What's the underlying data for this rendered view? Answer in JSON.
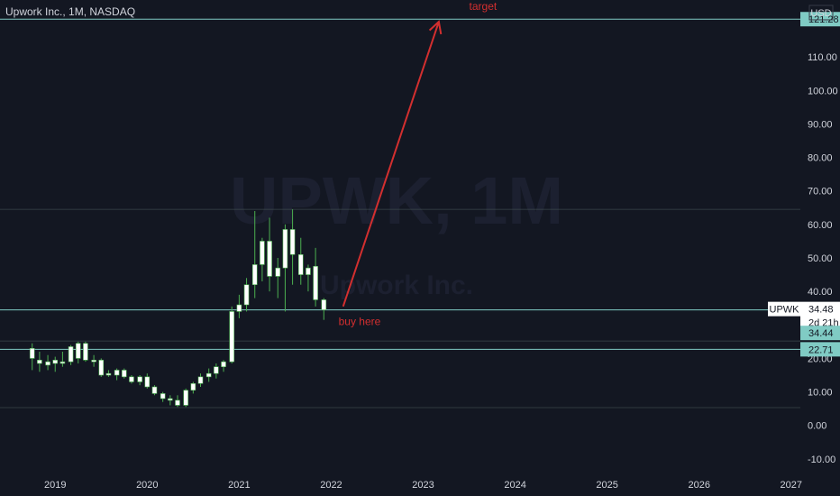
{
  "header": {
    "title": "Upwork Inc., 1M, NASDAQ"
  },
  "watermark": {
    "symbol": "UPWK, 1M",
    "name": "Upwork Inc."
  },
  "currency": "USD",
  "colors": {
    "background": "#131722",
    "up": "#ffffff",
    "wick": "#4caf50",
    "down": "#ffffff",
    "hline": "#80cbc4",
    "annotation": "#d32f2f",
    "tag_bg": "#80cbc4"
  },
  "chart_data": {
    "type": "candlestick",
    "x_ticks": [
      "2019",
      "2020",
      "2021",
      "2022",
      "2023",
      "2024",
      "2025",
      "2026",
      "2027"
    ],
    "y_ticks": [
      "-10.00",
      "0.00",
      "10.00",
      "20.00",
      "30.00",
      "40.00",
      "50.00",
      "60.00",
      "70.00",
      "80.00",
      "90.00",
      "100.00",
      "110.00"
    ],
    "ylim": [
      -13,
      127
    ],
    "xlim": [
      2018.4,
      2027.1
    ],
    "candles": [
      {
        "t": 2018.75,
        "o": 20.0,
        "h": 24.5,
        "l": 16.5,
        "c": 23.0
      },
      {
        "t": 2018.83,
        "o": 19.5,
        "h": 22.0,
        "l": 16.0,
        "c": 18.5
      },
      {
        "t": 2018.92,
        "o": 18.0,
        "h": 21.0,
        "l": 16.5,
        "c": 19.0
      },
      {
        "t": 2019.0,
        "o": 18.5,
        "h": 20.5,
        "l": 16.0,
        "c": 19.5
      },
      {
        "t": 2019.08,
        "o": 19.0,
        "h": 22.0,
        "l": 17.5,
        "c": 18.5
      },
      {
        "t": 2019.17,
        "o": 19.0,
        "h": 24.0,
        "l": 18.0,
        "c": 23.5
      },
      {
        "t": 2019.25,
        "o": 20.0,
        "h": 25.0,
        "l": 18.5,
        "c": 24.5
      },
      {
        "t": 2019.33,
        "o": 24.5,
        "h": 25.0,
        "l": 19.0,
        "c": 19.5
      },
      {
        "t": 2019.42,
        "o": 19.5,
        "h": 21.0,
        "l": 17.5,
        "c": 19.0
      },
      {
        "t": 2019.5,
        "o": 19.5,
        "h": 20.0,
        "l": 14.5,
        "c": 15.0
      },
      {
        "t": 2019.58,
        "o": 15.5,
        "h": 16.5,
        "l": 14.5,
        "c": 15.0
      },
      {
        "t": 2019.67,
        "o": 15.0,
        "h": 17.0,
        "l": 13.5,
        "c": 16.5
      },
      {
        "t": 2019.75,
        "o": 16.5,
        "h": 17.0,
        "l": 14.0,
        "c": 14.5
      },
      {
        "t": 2019.83,
        "o": 14.5,
        "h": 15.0,
        "l": 12.5,
        "c": 13.0
      },
      {
        "t": 2019.92,
        "o": 13.0,
        "h": 15.0,
        "l": 12.0,
        "c": 14.5
      },
      {
        "t": 2020.0,
        "o": 14.5,
        "h": 15.5,
        "l": 11.0,
        "c": 11.5
      },
      {
        "t": 2020.08,
        "o": 11.5,
        "h": 12.0,
        "l": 9.0,
        "c": 9.5
      },
      {
        "t": 2020.17,
        "o": 9.5,
        "h": 10.0,
        "l": 7.0,
        "c": 8.0
      },
      {
        "t": 2020.25,
        "o": 8.0,
        "h": 9.0,
        "l": 6.0,
        "c": 7.5
      },
      {
        "t": 2020.33,
        "o": 7.5,
        "h": 9.0,
        "l": 5.5,
        "c": 6.0
      },
      {
        "t": 2020.42,
        "o": 6.0,
        "h": 11.0,
        "l": 5.5,
        "c": 10.5
      },
      {
        "t": 2020.5,
        "o": 10.5,
        "h": 13.0,
        "l": 9.5,
        "c": 12.5
      },
      {
        "t": 2020.58,
        "o": 12.5,
        "h": 15.5,
        "l": 11.5,
        "c": 14.5
      },
      {
        "t": 2020.67,
        "o": 14.5,
        "h": 17.0,
        "l": 13.0,
        "c": 15.5
      },
      {
        "t": 2020.75,
        "o": 15.5,
        "h": 18.5,
        "l": 14.0,
        "c": 17.5
      },
      {
        "t": 2020.83,
        "o": 17.5,
        "h": 19.5,
        "l": 16.0,
        "c": 19.0
      },
      {
        "t": 2020.92,
        "o": 19.0,
        "h": 35.5,
        "l": 18.5,
        "c": 34.0
      },
      {
        "t": 2021.0,
        "o": 34.0,
        "h": 39.0,
        "l": 32.0,
        "c": 36.0
      },
      {
        "t": 2021.08,
        "o": 36.0,
        "h": 44.0,
        "l": 34.0,
        "c": 42.0
      },
      {
        "t": 2021.17,
        "o": 42.0,
        "h": 64.0,
        "l": 38.0,
        "c": 48.0
      },
      {
        "t": 2021.25,
        "o": 48.0,
        "h": 56.0,
        "l": 43.0,
        "c": 55.0
      },
      {
        "t": 2021.33,
        "o": 55.0,
        "h": 62.0,
        "l": 40.0,
        "c": 44.5
      },
      {
        "t": 2021.42,
        "o": 44.5,
        "h": 50.0,
        "l": 38.0,
        "c": 47.0
      },
      {
        "t": 2021.5,
        "o": 47.0,
        "h": 60.0,
        "l": 34.0,
        "c": 58.5
      },
      {
        "t": 2021.58,
        "o": 58.5,
        "h": 64.5,
        "l": 42.0,
        "c": 51.0
      },
      {
        "t": 2021.67,
        "o": 51.0,
        "h": 56.0,
        "l": 42.0,
        "c": 45.0
      },
      {
        "t": 2021.75,
        "o": 45.0,
        "h": 48.0,
        "l": 40.0,
        "c": 47.0
      },
      {
        "t": 2021.83,
        "o": 47.5,
        "h": 53.0,
        "l": 35.5,
        "c": 37.5
      },
      {
        "t": 2021.92,
        "o": 37.5,
        "h": 38.0,
        "l": 31.5,
        "c": 34.5
      }
    ],
    "horizontal_lines": [
      121.28,
      64.5,
      34.48,
      25.2,
      22.71,
      5.3
    ],
    "annotations": [
      {
        "text": "target",
        "t": 2023.5,
        "v": 124
      },
      {
        "text": "buy here",
        "t": 2022.08,
        "v": 30
      }
    ],
    "arrow": {
      "from": {
        "t": 2022.13,
        "v": 35.5
      },
      "to": {
        "t": 2023.17,
        "v": 120.5
      }
    },
    "price_tags": [
      {
        "label": "121.28",
        "v": 121.28,
        "style": "filled"
      },
      {
        "label": "34.48",
        "sub": "2d 21h",
        "symbol": "UPWK",
        "v": 34.48,
        "style": "white"
      },
      {
        "label": "34.44",
        "v": 27.6,
        "style": "filled"
      },
      {
        "label": "22.71",
        "v": 22.71,
        "style": "filled"
      }
    ]
  }
}
